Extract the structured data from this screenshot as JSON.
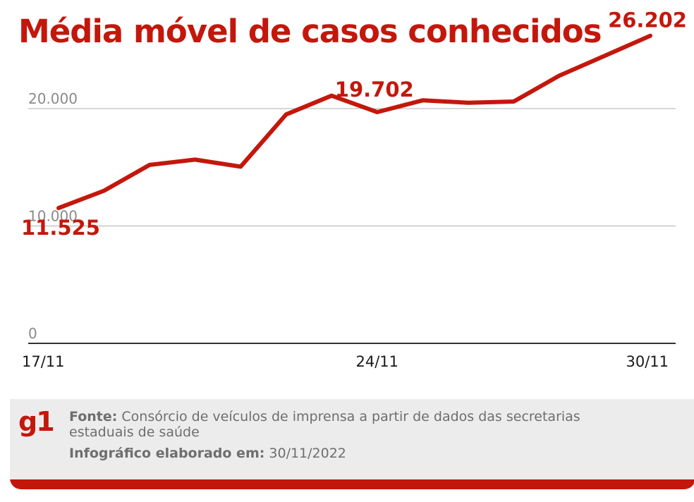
{
  "header": {
    "title": "Média móvel de casos conhecidos"
  },
  "chart_data": {
    "type": "line",
    "title": "Média móvel de casos conhecidos",
    "xlabel": "",
    "ylabel": "",
    "ylim": [
      0,
      25000
    ],
    "yticks": [
      {
        "value": 0,
        "label": "0"
      },
      {
        "value": 10000,
        "label": "10.000"
      },
      {
        "value": 20000,
        "label": "20.000"
      }
    ],
    "x": [
      "17/11",
      "18/11",
      "19/11",
      "20/11",
      "21/11",
      "22/11",
      "23/11",
      "24/11",
      "25/11",
      "26/11",
      "27/11",
      "28/11",
      "29/11",
      "30/11"
    ],
    "xtick_labels": [
      "17/11",
      "24/11",
      "30/11"
    ],
    "series": [
      {
        "name": "Média móvel de casos conhecidos",
        "values": [
          11525,
          13000,
          15200,
          15650,
          15050,
          19500,
          21100,
          19702,
          20700,
          20500,
          20600,
          22800,
          24500,
          26202
        ]
      }
    ],
    "annotations": [
      {
        "index": 0,
        "label": "11.525"
      },
      {
        "index": 7,
        "label": "19.702"
      },
      {
        "index": 13,
        "label": "26.202"
      }
    ],
    "grid": true,
    "color": "#c4170c"
  },
  "footer": {
    "logo": "g1",
    "source_label": "Fonte:",
    "source_text": "Consórcio de veículos de imprensa a partir de dados das secretarias estaduais de saúde",
    "credit_label": "Infográfico elaborado em:",
    "credit_date": "30/11/2022"
  }
}
